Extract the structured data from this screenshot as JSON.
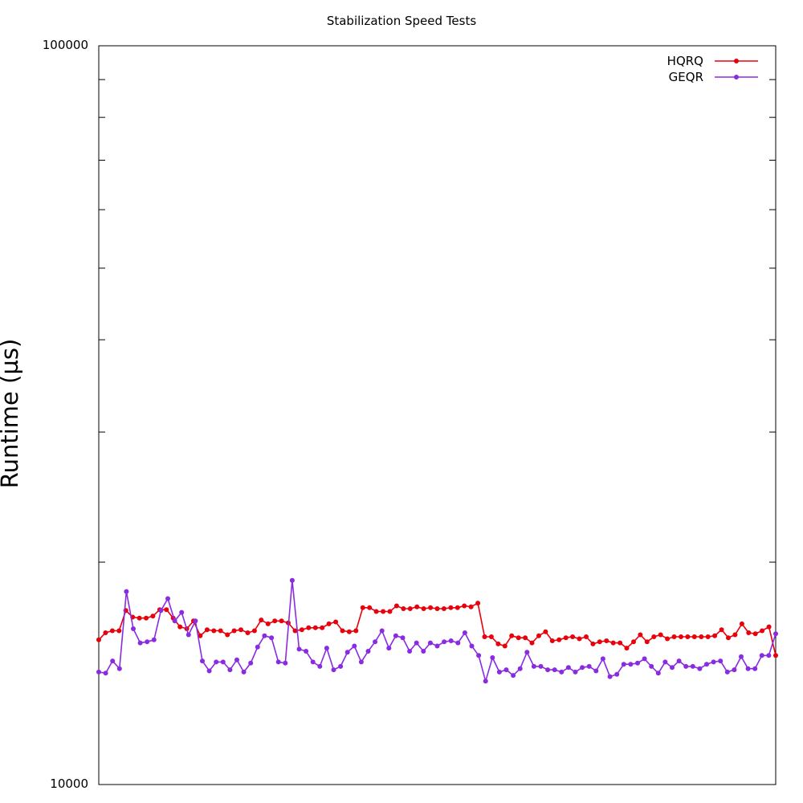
{
  "chart_data": {
    "type": "line",
    "title": "Stabilization Speed Tests",
    "xlabel": "",
    "ylabel": "Runtime (µs)",
    "yscale": "log",
    "ylim": [
      10000,
      100000
    ],
    "ytick_labels": [
      "100000",
      "10000"
    ],
    "grid": false,
    "legend_position": "top-right",
    "series": [
      {
        "name": "HQRQ",
        "color": "#e8000b",
        "values": [
          15700,
          16050,
          16150,
          16150,
          17200,
          16850,
          16800,
          16800,
          16900,
          17250,
          17250,
          16800,
          16350,
          16250,
          16650,
          15900,
          16200,
          16150,
          16150,
          15950,
          16150,
          16200,
          16050,
          16150,
          16700,
          16500,
          16650,
          16650,
          16550,
          16150,
          16200,
          16300,
          16300,
          16300,
          16500,
          16600,
          16150,
          16100,
          16150,
          17350,
          17350,
          17150,
          17150,
          17150,
          17450,
          17300,
          17300,
          17400,
          17300,
          17350,
          17300,
          17300,
          17350,
          17350,
          17450,
          17400,
          17600,
          15850,
          15850,
          15500,
          15400,
          15900,
          15800,
          15800,
          15550,
          15900,
          16100,
          15650,
          15700,
          15800,
          15850,
          15750,
          15850,
          15500,
          15600,
          15650,
          15550,
          15550,
          15300,
          15600,
          15950,
          15600,
          15850,
          15950,
          15750,
          15850,
          15850,
          15850,
          15850,
          15850,
          15850,
          15900,
          16200,
          15800,
          15950,
          16500,
          16050,
          16000,
          16150,
          16350,
          14950
        ]
      },
      {
        "name": "GEQR",
        "color": "#8a2be2",
        "values": [
          14200,
          14150,
          14700,
          14350,
          18250,
          16250,
          15550,
          15600,
          15700,
          17200,
          17850,
          16650,
          17100,
          15950,
          16650,
          14700,
          14250,
          14650,
          14650,
          14300,
          14750,
          14200,
          14600,
          15350,
          15900,
          15800,
          14650,
          14600,
          18900,
          15250,
          15150,
          14650,
          14450,
          15300,
          14300,
          14450,
          15100,
          15400,
          14650,
          15150,
          15600,
          16150,
          15300,
          15900,
          15800,
          15150,
          15550,
          15150,
          15550,
          15400,
          15600,
          15650,
          15550,
          16050,
          15400,
          14950,
          13800,
          14850,
          14200,
          14300,
          14050,
          14350,
          15100,
          14450,
          14450,
          14300,
          14300,
          14200,
          14400,
          14200,
          14400,
          14450,
          14250,
          14800,
          14000,
          14100,
          14550,
          14550,
          14600,
          14800,
          14450,
          14150,
          14650,
          14400,
          14700,
          14450,
          14450,
          14350,
          14550,
          14650,
          14700,
          14200,
          14300,
          14900,
          14350,
          14350,
          14950,
          14950,
          16000
        ]
      }
    ]
  }
}
